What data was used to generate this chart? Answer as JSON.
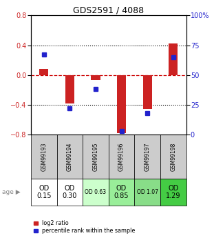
{
  "title": "GDS2591 / 4088",
  "samples": [
    "GSM99193",
    "GSM99194",
    "GSM99195",
    "GSM99196",
    "GSM99197",
    "GSM99198"
  ],
  "log2_ratio": [
    0.08,
    -0.38,
    -0.07,
    -0.78,
    -0.46,
    0.42
  ],
  "percentile_rank_pct": [
    67,
    22,
    38,
    3,
    18,
    65
  ],
  "age_labels": [
    "OD\n0.15",
    "OD\n0.30",
    "OD 0.63",
    "OD\n0.85",
    "OD 1.07",
    "OD\n1.29"
  ],
  "age_fontsize_large": [
    true,
    true,
    false,
    true,
    false,
    true
  ],
  "age_bg_colors": [
    "#ffffff",
    "#ffffff",
    "#ccffcc",
    "#99ee99",
    "#88dd88",
    "#44cc44"
  ],
  "ylim_left": [
    -0.8,
    0.8
  ],
  "ylim_right": [
    0,
    100
  ],
  "yticks_left": [
    -0.8,
    -0.4,
    0.0,
    0.4,
    0.8
  ],
  "yticks_right": [
    0,
    25,
    50,
    75,
    100
  ],
  "red_color": "#cc2222",
  "blue_color": "#2222cc",
  "zero_line_color": "#cc0000",
  "table_header_bg": "#cccccc",
  "legend_red_label": "log2 ratio",
  "legend_blue_label": "percentile rank within the sample"
}
